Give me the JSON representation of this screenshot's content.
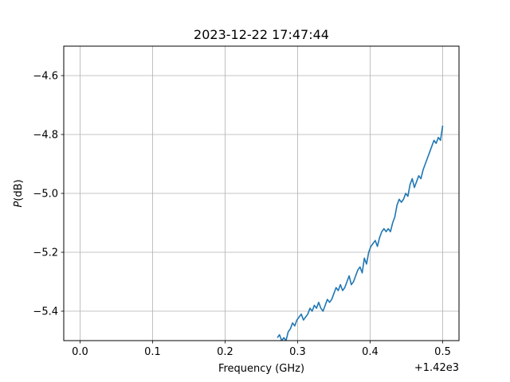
{
  "chart_data": {
    "type": "line",
    "title": "2023-12-22 17:47:44",
    "xlabel": "Frequency (GHz)",
    "ylabel_italic": "P",
    "ylabel_rest": "(dB)",
    "x_offset_label": "+1.42e3",
    "xlim": [
      -0.0225,
      0.5225
    ],
    "ylim": [
      -5.5,
      -4.5
    ],
    "grid": true,
    "xticks": [
      {
        "value": 0.0,
        "label": "0.0"
      },
      {
        "value": 0.1,
        "label": "0.1"
      },
      {
        "value": 0.2,
        "label": "0.2"
      },
      {
        "value": 0.3,
        "label": "0.3"
      },
      {
        "value": 0.4,
        "label": "0.4"
      },
      {
        "value": 0.5,
        "label": "0.5"
      }
    ],
    "yticks": [
      {
        "value": -4.6,
        "label": "−4.6"
      },
      {
        "value": -4.8,
        "label": "−4.8"
      },
      {
        "value": -5.0,
        "label": "−5.0"
      },
      {
        "value": -5.2,
        "label": "−5.2"
      },
      {
        "value": -5.4,
        "label": "−5.4"
      }
    ],
    "series": [
      {
        "color": "#1f77b4",
        "x": [
          0.272,
          0.275,
          0.278,
          0.281,
          0.284,
          0.287,
          0.29,
          0.293,
          0.296,
          0.299,
          0.302,
          0.305,
          0.308,
          0.311,
          0.314,
          0.317,
          0.32,
          0.323,
          0.326,
          0.329,
          0.332,
          0.335,
          0.338,
          0.341,
          0.344,
          0.347,
          0.35,
          0.353,
          0.356,
          0.359,
          0.362,
          0.365,
          0.368,
          0.371,
          0.374,
          0.377,
          0.38,
          0.383,
          0.386,
          0.389,
          0.392,
          0.395,
          0.398,
          0.401,
          0.404,
          0.407,
          0.41,
          0.413,
          0.416,
          0.419,
          0.422,
          0.425,
          0.428,
          0.431,
          0.434,
          0.437,
          0.44,
          0.443,
          0.446,
          0.449,
          0.452,
          0.455,
          0.458,
          0.461,
          0.464,
          0.467,
          0.47,
          0.473,
          0.476,
          0.479,
          0.482,
          0.485,
          0.488,
          0.491,
          0.494,
          0.497,
          0.5
        ],
        "y": [
          -5.49,
          -5.48,
          -5.5,
          -5.49,
          -5.5,
          -5.47,
          -5.46,
          -5.44,
          -5.45,
          -5.43,
          -5.42,
          -5.41,
          -5.43,
          -5.42,
          -5.41,
          -5.39,
          -5.4,
          -5.38,
          -5.39,
          -5.37,
          -5.39,
          -5.4,
          -5.38,
          -5.36,
          -5.37,
          -5.36,
          -5.34,
          -5.32,
          -5.33,
          -5.31,
          -5.33,
          -5.32,
          -5.3,
          -5.28,
          -5.31,
          -5.3,
          -5.28,
          -5.26,
          -5.25,
          -5.27,
          -5.22,
          -5.24,
          -5.2,
          -5.18,
          -5.17,
          -5.16,
          -5.18,
          -5.15,
          -5.13,
          -5.12,
          -5.13,
          -5.12,
          -5.13,
          -5.1,
          -5.08,
          -5.04,
          -5.02,
          -5.03,
          -5.02,
          -5.0,
          -5.01,
          -4.97,
          -4.95,
          -4.98,
          -4.96,
          -4.94,
          -4.95,
          -4.92,
          -4.9,
          -4.88,
          -4.86,
          -4.84,
          -4.82,
          -4.83,
          -4.81,
          -4.82,
          -4.77
        ]
      }
    ]
  }
}
